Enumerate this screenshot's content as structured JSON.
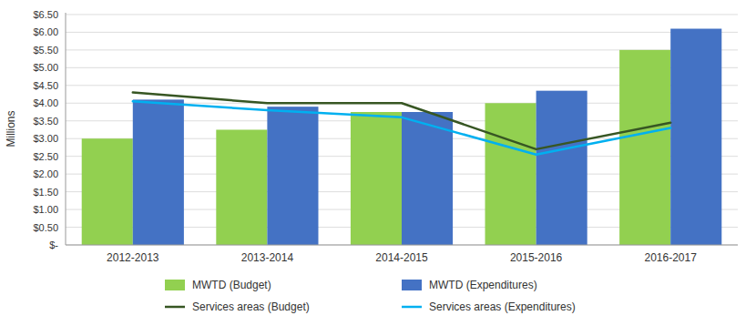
{
  "chart_data": {
    "type": "bar",
    "y_label": "Millions",
    "categories": [
      "2012-2013",
      "2013-2014",
      "2014-2015",
      "2015-2016",
      "2016-2017"
    ],
    "series": [
      {
        "name": "MWTD (Budget)",
        "type": "bar",
        "color": "#92d050",
        "values": [
          3.0,
          3.25,
          3.75,
          4.0,
          5.5
        ]
      },
      {
        "name": "MWTD (Expenditures)",
        "type": "bar",
        "color": "#4472c4",
        "values": [
          4.1,
          3.9,
          3.75,
          4.35,
          6.1
        ]
      },
      {
        "name": "Services areas (Budget)",
        "type": "line",
        "color": "#375623",
        "values": [
          4.3,
          4.0,
          4.0,
          2.7,
          3.45
        ]
      },
      {
        "name": "Services areas (Expenditures)",
        "type": "line",
        "color": "#00b0f0",
        "values": [
          4.05,
          3.8,
          3.6,
          2.55,
          3.3
        ]
      }
    ],
    "ylim": [
      0,
      6.55
    ],
    "yticks": [
      {
        "value": 0,
        "label": "$-"
      },
      {
        "value": 0.5,
        "label": "$0.50"
      },
      {
        "value": 1.0,
        "label": "$1.00"
      },
      {
        "value": 1.5,
        "label": "$1.50"
      },
      {
        "value": 2.0,
        "label": "$2.00"
      },
      {
        "value": 2.5,
        "label": "$2.50"
      },
      {
        "value": 3.0,
        "label": "$3.00"
      },
      {
        "value": 3.5,
        "label": "$3.50"
      },
      {
        "value": 4.0,
        "label": "$4.00"
      },
      {
        "value": 4.5,
        "label": "$4.50"
      },
      {
        "value": 5.0,
        "label": "$5.00"
      },
      {
        "value": 5.5,
        "label": "$5.50"
      },
      {
        "value": 6.0,
        "label": "$6.00"
      },
      {
        "value": 6.5,
        "label": "$6.50"
      }
    ],
    "grid": true,
    "legend": "bottom"
  }
}
